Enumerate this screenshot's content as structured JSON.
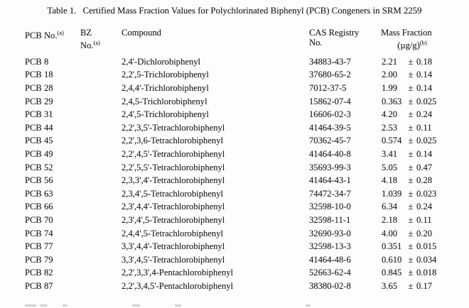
{
  "title": {
    "label": "Table 1.",
    "text": "Certified Mass Fraction Values for Polychlorinated Biphenyl (PCB) Congeners in SRM 2259"
  },
  "table": {
    "headers": {
      "pcb_no": "PCB No.",
      "pcb_no_sup": "(a)",
      "bz_line1": "BZ",
      "bz_line2": "No.",
      "bz_sup": "(a)",
      "compound": "Compound",
      "cas_line1": "CAS Registry",
      "cas_line2": "No.",
      "mf_line1": "Mass Fraction",
      "mf_line2": "(µg/g)",
      "mf_sup": "(b)"
    },
    "rows": [
      {
        "pcb": "PCB 8",
        "bz": "",
        "compound": "2,4'-Dichlorobiphenyl",
        "cas": "34883-43-7",
        "value": "2.21",
        "pm": "±",
        "unc": "0.18"
      },
      {
        "pcb": "PCB 18",
        "bz": "",
        "compound": "2,2',5-Trichlorobiphenyl",
        "cas": "37680-65-2",
        "value": "2.00",
        "pm": "±",
        "unc": "0.14"
      },
      {
        "pcb": "PCB 28",
        "bz": "",
        "compound": "2,4,4'-Trichlorobiphenyl",
        "cas": "7012-37-5",
        "value": "1.99",
        "pm": "±",
        "unc": "0.14"
      },
      {
        "pcb": "PCB 29",
        "bz": "",
        "compound": "2,4,5-Trichlorobiphenyl",
        "cas": "15862-07-4",
        "value": "0.363",
        "pm": "±",
        "unc": "0.025"
      },
      {
        "pcb": "PCB 31",
        "bz": "",
        "compound": "2,4',5-Trichlorobiphenyl",
        "cas": "16606-02-3",
        "value": "4.20",
        "pm": "±",
        "unc": "0.24"
      },
      {
        "pcb": "PCB 44",
        "bz": "",
        "compound": "2,2',3,5'-Tetrachlorobiphenyl",
        "cas": "41464-39-5",
        "value": "2.53",
        "pm": "±",
        "unc": "0.11"
      },
      {
        "pcb": "PCB 45",
        "bz": "",
        "compound": "2,2',3,6-Tetrachlorobiphenyl",
        "cas": "70362-45-7",
        "value": "0.574",
        "pm": "±",
        "unc": "0.025"
      },
      {
        "pcb": "PCB 49",
        "bz": "",
        "compound": "2,2',4,5'-Tetrachlorobiphenyl",
        "cas": "41464-40-8",
        "value": "3.41",
        "pm": "±",
        "unc": "0.14"
      },
      {
        "pcb": "PCB 52",
        "bz": "",
        "compound": "2,2',5,5'-Tetrachlorobiphenyl",
        "cas": "35693-99-3",
        "value": "5.05",
        "pm": "±",
        "unc": "0.47"
      },
      {
        "pcb": "PCB 56",
        "bz": "",
        "compound": "2,3,3',4'-Tetrachlorobiphenyl",
        "cas": "41464-43-1",
        "value": "4.18",
        "pm": "±",
        "unc": "0.28"
      },
      {
        "pcb": "PCB 63",
        "bz": "",
        "compound": "2,3,4',5-Tetrachlorobiphenyl",
        "cas": "74472-34-7",
        "value": "1.039",
        "pm": "±",
        "unc": "0.023"
      },
      {
        "pcb": "PCB 66",
        "bz": "",
        "compound": "2,3',4,4'-Tetrachlorobiphenyl",
        "cas": "32598-10-0",
        "value": "6.34",
        "pm": "±",
        "unc": "0.24"
      },
      {
        "pcb": "PCB 70",
        "bz": "",
        "compound": "2,3',4',5-Tetrachlorobiphenyl",
        "cas": "32598-11-1",
        "value": "2.18",
        "pm": "±",
        "unc": "0.11"
      },
      {
        "pcb": "PCB 74",
        "bz": "",
        "compound": "2,4,4',5-Tetrachlorobiphenyl",
        "cas": "32690-93-0",
        "value": "4.00",
        "pm": "±",
        "unc": "0.20"
      },
      {
        "pcb": "PCB 77",
        "bz": "",
        "compound": "3,3',4,4'-Tetrachlorobiphenyl",
        "cas": "32598-13-3",
        "value": "0.351",
        "pm": "±",
        "unc": "0.015"
      },
      {
        "pcb": "PCB 79",
        "bz": "",
        "compound": "3,3',4,5'-Tetrachlorobiphenyl",
        "cas": "41464-48-6",
        "value": "0.610",
        "pm": "±",
        "unc": "0.034"
      },
      {
        "pcb": "PCB 82",
        "bz": "",
        "compound": "2,2',3,3',4-Pentachlorobiphenyl",
        "cas": "52663-62-4",
        "value": "0.845",
        "pm": "±",
        "unc": "0.018"
      },
      {
        "pcb": "PCB 87",
        "bz": "",
        "compound": "2,2',3,4,5'-Pentachlorobiphenyl",
        "cas": "38380-02-8",
        "value": "3.65",
        "pm": "±",
        "unc": "0.17"
      }
    ]
  }
}
